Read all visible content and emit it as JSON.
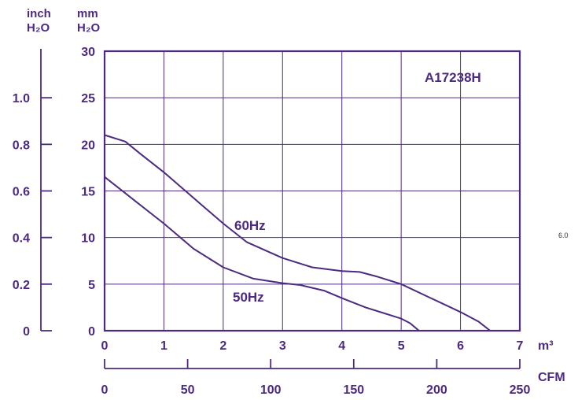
{
  "colors": {
    "line": "#4b2a80",
    "text": "#4b2a80",
    "background": "#ffffff"
  },
  "side_note": "6.0",
  "chart_data": {
    "type": "line",
    "title": "A17238H",
    "x": {
      "label": "m³",
      "range": [
        0,
        7
      ],
      "ticks": [
        "0",
        "1",
        "2",
        "3",
        "4",
        "5",
        "6",
        "7"
      ]
    },
    "x2": {
      "label": "CFM",
      "range": [
        0,
        250
      ],
      "ticks": [
        "0",
        "50",
        "100",
        "150",
        "200",
        "250"
      ]
    },
    "y": {
      "label_line1": "mm",
      "label_line2": "H₂O",
      "range": [
        0,
        30
      ],
      "ticks": [
        "0",
        "5",
        "10",
        "15",
        "20",
        "25",
        "30"
      ]
    },
    "y2": {
      "label_line1": "inch",
      "label_line2": "H₂O",
      "range": [
        0,
        1.181
      ],
      "ticks": [
        {
          "label": "0",
          "mm": 0
        },
        {
          "label": "0.2",
          "mm": 5
        },
        {
          "label": "0.4",
          "mm": 10
        },
        {
          "label": "0.6",
          "mm": 15
        },
        {
          "label": "0.8",
          "mm": 20
        },
        {
          "label": "1.0",
          "mm": 25
        }
      ]
    },
    "grid": true,
    "series": [
      {
        "name": "60Hz",
        "points": [
          [
            0,
            21
          ],
          [
            0.35,
            20.3
          ],
          [
            0.6,
            19
          ],
          [
            1.0,
            17
          ],
          [
            1.4,
            14.8
          ],
          [
            2.0,
            11.5
          ],
          [
            2.4,
            9.5
          ],
          [
            3.0,
            7.8
          ],
          [
            3.5,
            6.8
          ],
          [
            4.0,
            6.4
          ],
          [
            4.3,
            6.3
          ],
          [
            4.6,
            5.8
          ],
          [
            5.0,
            5.0
          ],
          [
            5.5,
            3.5
          ],
          [
            6.0,
            2.0
          ],
          [
            6.3,
            1.0
          ],
          [
            6.5,
            0
          ]
        ]
      },
      {
        "name": "50Hz",
        "points": [
          [
            0,
            16.5
          ],
          [
            0.5,
            14
          ],
          [
            1.0,
            11.5
          ],
          [
            1.5,
            8.8
          ],
          [
            2.0,
            6.8
          ],
          [
            2.5,
            5.6
          ],
          [
            3.0,
            5.1
          ],
          [
            3.3,
            4.9
          ],
          [
            3.7,
            4.3
          ],
          [
            4.0,
            3.5
          ],
          [
            4.4,
            2.5
          ],
          [
            4.7,
            1.9
          ],
          [
            5.0,
            1.3
          ],
          [
            5.15,
            0.8
          ],
          [
            5.3,
            0
          ]
        ]
      }
    ]
  }
}
